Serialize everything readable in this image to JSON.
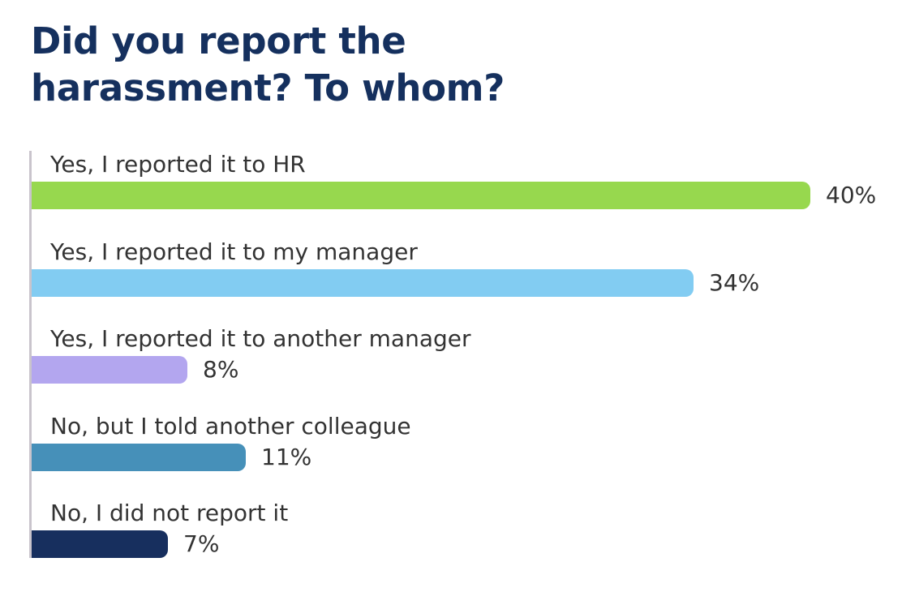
{
  "chart_data": {
    "type": "bar",
    "orientation": "horizontal",
    "title": "Did you report the harassment? To whom?",
    "categories": [
      "Yes, I reported it to HR",
      "Yes, I reported it to my manager",
      "Yes, I reported it to another manager",
      "No, but I told another colleague",
      "No, I did not report it"
    ],
    "values": [
      40,
      34,
      8,
      11,
      7
    ],
    "value_labels": [
      "40%",
      "34%",
      "8%",
      "11%",
      "7%"
    ],
    "colors": [
      "#97d84e",
      "#82ccf2",
      "#b3a6ef",
      "#4690b9",
      "#172f5e"
    ],
    "xlim": [
      0,
      40
    ],
    "grid": false,
    "legend": "none"
  }
}
